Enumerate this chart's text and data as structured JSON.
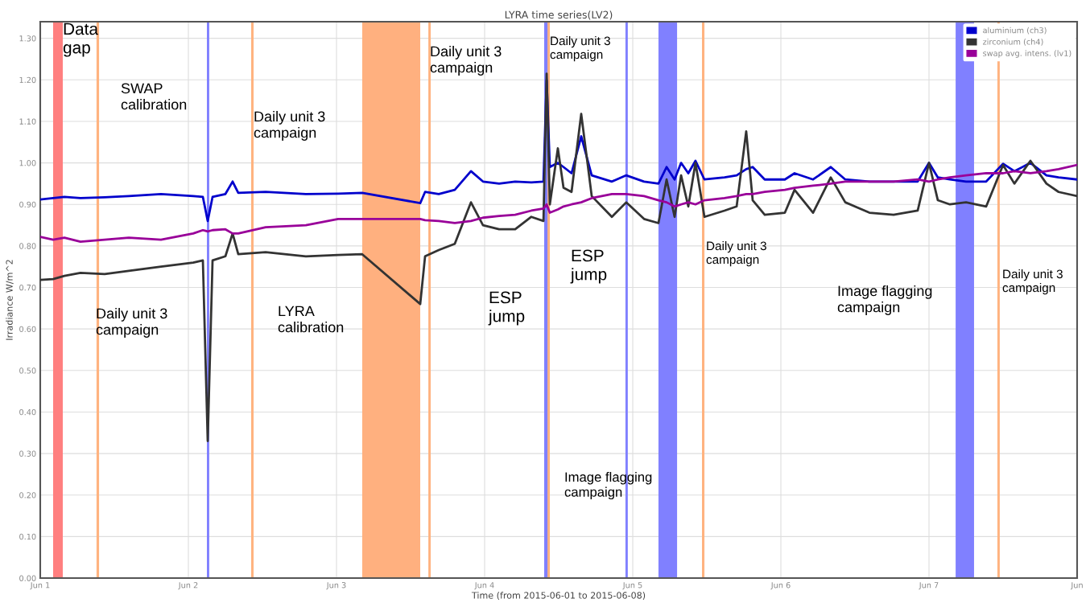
{
  "chart_data": {
    "type": "line",
    "title": "LYRA time series(LV2)",
    "xlabel": "Time (from 2015-06-01 to 2015-06-08)",
    "ylabel": "Irradiance W/m^2",
    "x": [
      "2015-06-01T00:00",
      "2015-06-01T02:05",
      "2015-06-01T03:55",
      "2015-06-01T06:31",
      "2015-06-01T10:26",
      "2015-06-01T14:21",
      "2015-06-01T19:34",
      "2015-06-02T00:47",
      "2015-06-02T02:21",
      "2015-06-02T03:08",
      "2015-06-02T03:55",
      "2015-06-02T06:00",
      "2015-06-02T07:10",
      "2015-06-02T08:05",
      "2015-06-02T12:31",
      "2015-06-02T19:02",
      "2015-06-03T00:16",
      "2015-06-03T04:10",
      "2015-06-03T13:34",
      "2015-06-03T14:21",
      "2015-06-03T16:34",
      "2015-06-03T19:10",
      "2015-06-03T21:47",
      "2015-06-03T23:44",
      "2015-06-04T02:21",
      "2015-06-04T04:57",
      "2015-06-04T07:34",
      "2015-06-04T09:32",
      "2015-06-04T10:03",
      "2015-06-04T10:34",
      "2015-06-04T11:52",
      "2015-06-04T12:47",
      "2015-06-04T14:05",
      "2015-06-04T15:39",
      "2015-06-04T17:21",
      "2015-06-04T20:37",
      "2015-06-04T22:57",
      "2015-06-05T01:50",
      "2015-06-05T04:10",
      "2015-06-05T05:29",
      "2015-06-05T06:47",
      "2015-06-05T07:50",
      "2015-06-05T09:00",
      "2015-06-05T10:10",
      "2015-06-05T11:37",
      "2015-06-05T14:52",
      "2015-06-05T16:50",
      "2015-06-05T18:23",
      "2015-06-05T19:26",
      "2015-06-05T21:23",
      "2015-06-06T00:39",
      "2015-06-06T02:13",
      "2015-06-06T05:13",
      "2015-06-06T08:05",
      "2015-06-06T10:26",
      "2015-06-06T14:21",
      "2015-06-06T18:16",
      "2015-06-06T22:10",
      "2015-06-07T00:00",
      "2015-06-07T01:26",
      "2015-06-07T03:23",
      "2015-06-07T06:00",
      "2015-06-07T09:16",
      "2015-06-07T12:00",
      "2015-06-07T13:50",
      "2015-06-07T16:26",
      "2015-06-07T19:02",
      "2015-06-07T21:00",
      "2015-06-08T00:00"
    ],
    "series": [
      {
        "name": "aluminium (ch3)",
        "color": "#0000cc",
        "values": [
          0.912,
          0.915,
          0.918,
          0.915,
          0.917,
          0.92,
          0.925,
          0.92,
          0.918,
          0.86,
          0.918,
          0.925,
          0.955,
          0.928,
          0.93,
          0.925,
          0.926,
          0.928,
          0.903,
          0.93,
          0.925,
          0.935,
          0.98,
          0.955,
          0.95,
          0.955,
          0.953,
          0.955,
          1.2,
          0.99,
          1.0,
          0.99,
          0.975,
          1.064,
          0.97,
          0.955,
          0.97,
          0.955,
          0.95,
          0.99,
          0.96,
          1.0,
          0.975,
          1.005,
          0.96,
          0.965,
          0.97,
          0.985,
          0.99,
          0.96,
          0.96,
          0.975,
          0.96,
          0.99,
          0.96,
          0.955,
          0.955,
          0.955,
          1.0,
          0.965,
          0.96,
          0.955,
          0.955,
          0.998,
          0.98,
          1.0,
          0.97,
          0.965,
          0.96
        ]
      },
      {
        "name": "zirconium (ch4)",
        "color": "#333333",
        "values": [
          0.718,
          0.72,
          0.728,
          0.735,
          0.732,
          0.74,
          0.75,
          0.76,
          0.765,
          0.33,
          0.765,
          0.775,
          0.83,
          0.78,
          0.785,
          0.775,
          0.778,
          0.78,
          0.66,
          0.775,
          0.79,
          0.805,
          0.905,
          0.85,
          0.84,
          0.84,
          0.87,
          0.86,
          1.215,
          0.9,
          1.035,
          0.94,
          0.93,
          1.118,
          0.92,
          0.87,
          0.905,
          0.865,
          0.855,
          0.96,
          0.87,
          0.97,
          0.895,
          1.0,
          0.87,
          0.885,
          0.895,
          1.076,
          0.91,
          0.875,
          0.88,
          0.935,
          0.88,
          0.965,
          0.905,
          0.88,
          0.875,
          0.885,
          1.0,
          0.91,
          0.9,
          0.905,
          0.895,
          0.995,
          0.95,
          1.005,
          0.95,
          0.93,
          0.92
        ]
      },
      {
        "name": "swap avg. intens. (lv1)",
        "color": "#990099",
        "values": [
          0.822,
          0.815,
          0.82,
          0.81,
          0.815,
          0.82,
          0.815,
          0.83,
          0.838,
          0.835,
          0.838,
          0.84,
          0.83,
          0.83,
          0.845,
          0.85,
          0.865,
          0.865,
          0.865,
          0.862,
          0.86,
          0.855,
          0.86,
          0.868,
          0.872,
          0.875,
          0.885,
          0.89,
          0.9,
          0.88,
          0.888,
          0.895,
          0.9,
          0.905,
          0.915,
          0.925,
          0.925,
          0.92,
          0.91,
          0.905,
          0.895,
          0.9,
          0.905,
          0.9,
          0.91,
          0.915,
          0.92,
          0.925,
          0.925,
          0.93,
          0.935,
          0.94,
          0.945,
          0.95,
          0.955,
          0.955,
          0.955,
          0.96,
          0.955,
          0.96,
          0.965,
          0.97,
          0.975,
          0.975,
          0.98,
          0.975,
          0.98,
          0.985,
          0.995
        ]
      }
    ],
    "xlim": [
      "2015-06-01",
      "2015-06-08"
    ],
    "xticks": [
      {
        "value": "2015-06-01",
        "label": "Jun 1"
      },
      {
        "value": "2015-06-02",
        "label": "Jun 2"
      },
      {
        "value": "2015-06-03",
        "label": "Jun 3"
      },
      {
        "value": "2015-06-04",
        "label": "Jun 4"
      },
      {
        "value": "2015-06-05",
        "label": "Jun 5"
      },
      {
        "value": "2015-06-06",
        "label": "Jun 6"
      },
      {
        "value": "2015-06-07",
        "label": "Jun 7"
      },
      {
        "value": "2015-06-08",
        "label": "Jun"
      }
    ],
    "ylim": [
      0,
      1.34
    ],
    "yticks": [
      {
        "value": 0,
        "label": "0.00"
      },
      {
        "value": 0.1,
        "label": "0.10"
      },
      {
        "value": 0.2,
        "label": "0.20"
      },
      {
        "value": 0.3,
        "label": "0.30"
      },
      {
        "value": 0.4,
        "label": "0.40"
      },
      {
        "value": 0.5,
        "label": "0.50"
      },
      {
        "value": 0.6,
        "label": "0.60"
      },
      {
        "value": 0.7,
        "label": "0.70"
      },
      {
        "value": 0.8,
        "label": "0.80"
      },
      {
        "value": 0.9,
        "label": "0.90"
      },
      {
        "value": 1.0,
        "label": "1.00"
      },
      {
        "value": 1.1,
        "label": "1.10"
      },
      {
        "value": 1.2,
        "label": "1.20"
      },
      {
        "value": 1.3,
        "label": "1.30"
      }
    ],
    "bands": [
      {
        "axis": "x",
        "from": "2015-06-01T02:05",
        "to": "2015-06-01T03:39",
        "color": "#ff7f7f",
        "label": "Data\ngap"
      },
      {
        "axis": "x",
        "from": "2015-06-01T09:07",
        "to": "2015-06-01T09:32",
        "color": "#ffb380",
        "label": "Daily unit 3\ncampaign"
      },
      {
        "axis": "x",
        "from": "2015-06-02T03:00",
        "to": "2015-06-02T03:23",
        "color": "#8080ff",
        "label": "SWAP\ncalibration"
      },
      {
        "axis": "x",
        "from": "2015-06-02T10:10",
        "to": "2015-06-02T10:34",
        "color": "#ffb380",
        "label": "Daily unit 3\ncampaign"
      },
      {
        "axis": "x",
        "from": "2015-06-03T04:10",
        "to": "2015-06-03T13:34",
        "color": "#ffb07f",
        "label": "LYRA\ncalibration"
      },
      {
        "axis": "x",
        "from": "2015-06-03T14:53",
        "to": "2015-06-03T15:16",
        "color": "#ffb380",
        "label": "Daily unit 3\ncampaign"
      },
      {
        "axis": "x",
        "from": "2015-06-04T09:39",
        "to": "2015-06-04T10:19",
        "color": "#8080ff",
        "label": "ESP\njump"
      },
      {
        "axis": "x",
        "from": "2015-06-04T10:11",
        "to": "2015-06-04T10:34",
        "color": "#ffb380",
        "label": "Daily unit 3\ncampaign"
      },
      {
        "axis": "x",
        "from": "2015-06-04T22:49",
        "to": "2015-06-04T23:12",
        "color": "#8080ff",
        "label": "ESP\njump"
      },
      {
        "axis": "x",
        "from": "2015-06-05T04:10",
        "to": "2015-06-05T07:11",
        "color": "#8080ff",
        "label": "Image flagging\ncampaign"
      },
      {
        "axis": "x",
        "from": "2015-06-05T11:13",
        "to": "2015-06-05T11:37",
        "color": "#ffb380",
        "label": "Daily unit 3\ncampaign"
      },
      {
        "axis": "x",
        "from": "2015-06-07T04:19",
        "to": "2015-06-07T07:18",
        "color": "#8080ff",
        "label": "Image flagging\ncampaign"
      },
      {
        "axis": "x",
        "from": "2015-06-07T11:05",
        "to": "2015-06-07T11:28",
        "color": "#ffb380",
        "label": "Daily unit 3\ncampaign"
      }
    ],
    "grid": true,
    "legend": "top right",
    "marker": "none",
    "line_style": "solid"
  }
}
